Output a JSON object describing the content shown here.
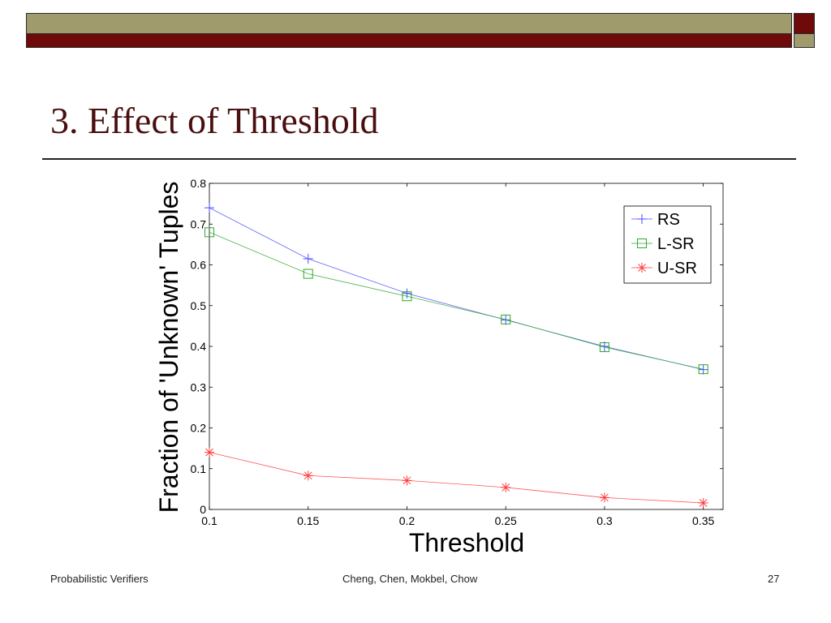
{
  "slide": {
    "title": "3. Effect of Threshold",
    "footer_left": "Probabilistic Verifiers",
    "footer_center": "Cheng, Chen, Mokbel, Chow",
    "page_number": "27"
  },
  "colors": {
    "header_olive": "#a09b6c",
    "header_maroon": "#6e0a0a",
    "title": "#4a0e0e"
  },
  "chart_data": {
    "type": "line",
    "title": "",
    "xlabel": "Threshold",
    "ylabel": "Fraction of 'Unknown' Tuples",
    "x": [
      0.1,
      0.15,
      0.2,
      0.25,
      0.3,
      0.35
    ],
    "xlim": [
      0.1,
      0.36
    ],
    "ylim": [
      0,
      0.8
    ],
    "xticks": [
      "0.1",
      "0.15",
      "0.2",
      "0.25",
      "0.3",
      "0.35"
    ],
    "yticks": [
      "0",
      "0.1",
      "0.2",
      "0.3",
      "0.4",
      "0.5",
      "0.6",
      "0.7",
      "0.8"
    ],
    "grid": false,
    "legend_position": "top-right",
    "series": [
      {
        "name": "RS",
        "marker": "plus",
        "color": "#4a4aff",
        "values": [
          0.74,
          0.615,
          0.53,
          0.465,
          0.4,
          0.343
        ]
      },
      {
        "name": "L-SR",
        "marker": "square",
        "color": "#2ea82e",
        "values": [
          0.68,
          0.578,
          0.523,
          0.466,
          0.398,
          0.344
        ]
      },
      {
        "name": "U-SR",
        "marker": "asterisk",
        "color": "#ff3b3b",
        "values": [
          0.14,
          0.083,
          0.071,
          0.054,
          0.029,
          0.016
        ]
      }
    ]
  }
}
